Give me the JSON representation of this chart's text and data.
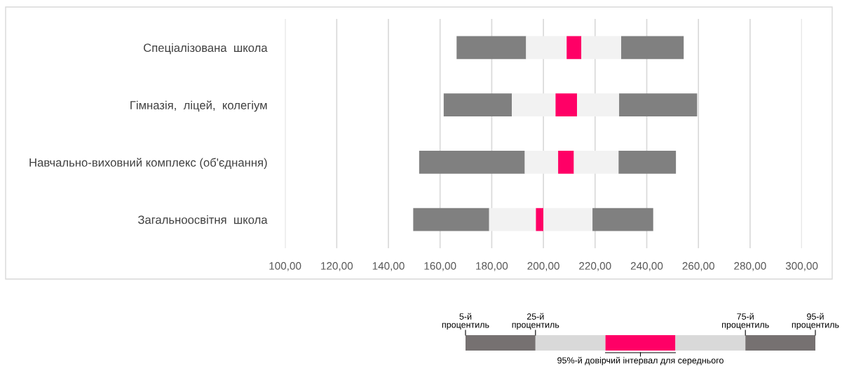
{
  "chart_data": {
    "type": "bar",
    "orientation": "horizontal",
    "categories": [
      "Спеціалізована  школа",
      "Гімназія,  ліцей,  колегіум",
      "Навчально-виховний комплекс (об'єднання)",
      "Загальноосвітня  школа"
    ],
    "series": [
      {
        "color": "#808080",
        "base": [
          166.4,
          161.4,
          151.9,
          149.6
        ],
        "values": [
          26.9,
          26.4,
          40.9,
          29.4
        ]
      },
      {
        "color": "#f2f2f2",
        "base": [
          193.3,
          187.8,
          192.8,
          179.0
        ],
        "values": [
          15.7,
          16.9,
          12.9,
          18.1
        ]
      },
      {
        "color": "#ff0066",
        "base": [
          209.0,
          204.7,
          205.7,
          197.1
        ],
        "values": [
          5.7,
          8.3,
          6.1,
          2.9
        ]
      },
      {
        "color": "#f2f2f2",
        "base": [
          214.7,
          213.0,
          211.8,
          200.0
        ],
        "values": [
          15.4,
          16.3,
          17.3,
          19.0
        ]
      },
      {
        "color": "#808080",
        "base": [
          230.1,
          229.3,
          229.1,
          219.0
        ],
        "values": [
          24.2,
          30.2,
          22.2,
          23.5
        ]
      }
    ],
    "xlim": [
      100,
      300
    ],
    "xticks": [
      {
        "value": 100,
        "label": "100,00"
      },
      {
        "value": 120,
        "label": "120,00"
      },
      {
        "value": 140,
        "label": "140,00"
      },
      {
        "value": 160,
        "label": "160,00"
      },
      {
        "value": 180,
        "label": "180,00"
      },
      {
        "value": 200,
        "label": "200,00"
      },
      {
        "value": 220,
        "label": "220,00"
      },
      {
        "value": 240,
        "label": "240,00"
      },
      {
        "value": 260,
        "label": "260,00"
      },
      {
        "value": 280,
        "label": "280,00"
      },
      {
        "value": 300,
        "label": "300,00"
      }
    ],
    "grid": "x",
    "annotations": [
      "5-й\nпроцентиль",
      "25-й\nпроцентиль",
      "75-й\nпроцентиль",
      "95-й\nпроцентиль",
      "95%-й довірчий інтервал для середнього"
    ]
  }
}
